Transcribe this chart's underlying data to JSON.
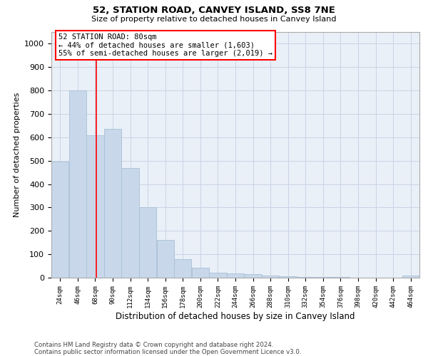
{
  "title1": "52, STATION ROAD, CANVEY ISLAND, SS8 7NE",
  "title2": "Size of property relative to detached houses in Canvey Island",
  "xlabel": "Distribution of detached houses by size in Canvey Island",
  "ylabel": "Number of detached properties",
  "footnote1": "Contains HM Land Registry data © Crown copyright and database right 2024.",
  "footnote2": "Contains public sector information licensed under the Open Government Licence v3.0.",
  "annotation_title": "52 STATION ROAD: 80sqm",
  "annotation_line1": "← 44% of detached houses are smaller (1,603)",
  "annotation_line2": "55% of semi-detached houses are larger (2,019) →",
  "bar_color": "#c8d8ea",
  "bar_edge_color": "#a8c0d8",
  "vline_color": "red",
  "vline_x": 80,
  "categories": [
    24,
    46,
    68,
    90,
    112,
    134,
    156,
    178,
    200,
    222,
    244,
    266,
    288,
    310,
    332,
    354,
    376,
    398,
    420,
    442,
    464
  ],
  "bin_width": 22,
  "values": [
    497,
    800,
    610,
    635,
    470,
    302,
    162,
    78,
    43,
    22,
    18,
    14,
    9,
    5,
    3,
    4,
    2,
    1,
    0,
    0,
    8
  ],
  "ylim": [
    0,
    1050
  ],
  "yticks": [
    0,
    100,
    200,
    300,
    400,
    500,
    600,
    700,
    800,
    900,
    1000
  ],
  "background_color": "#ffffff",
  "axes_bg_color": "#eaf0f8",
  "grid_color": "#c8d4e4"
}
